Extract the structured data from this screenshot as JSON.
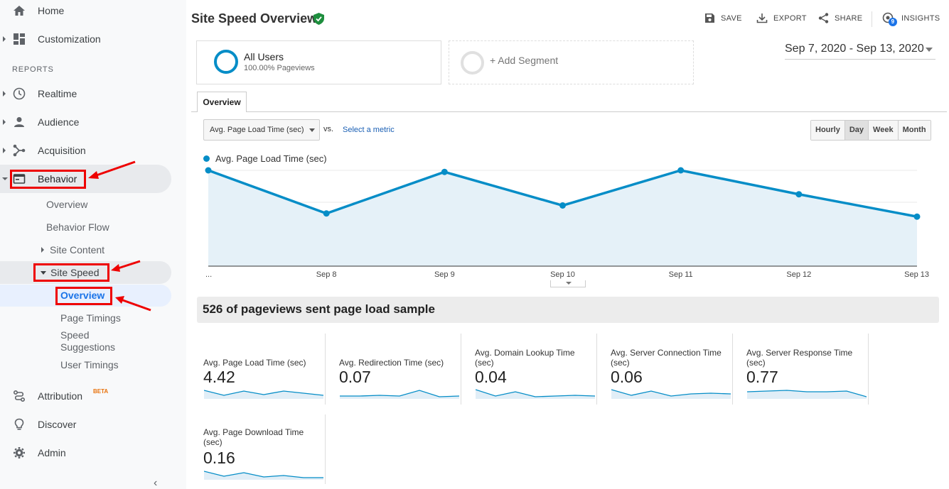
{
  "sidebar": {
    "home": "Home",
    "customization": "Customization",
    "reports_label": "REPORTS",
    "realtime": "Realtime",
    "audience": "Audience",
    "acquisition": "Acquisition",
    "behavior": "Behavior",
    "behavior_children": {
      "overview": "Overview",
      "behavior_flow": "Behavior Flow",
      "site_content": "Site Content",
      "site_speed": "Site Speed"
    },
    "site_speed_children": {
      "overview": "Overview",
      "page_timings": "Page Timings",
      "speed_suggestions_1": "Speed",
      "speed_suggestions_2": "Suggestions",
      "user_timings": "User Timings"
    },
    "attribution": "Attribution",
    "attribution_badge": "BETA",
    "discover": "Discover",
    "admin": "Admin",
    "accent_color": "#e00000"
  },
  "header": {
    "title": "Site Speed Overview",
    "save": "SAVE",
    "export": "EXPORT",
    "share": "SHARE",
    "insights": "INSIGHTS",
    "insights_count": "9"
  },
  "segments": {
    "primary_name": "All Users",
    "primary_sub": "100.00% Pageviews",
    "add": "+ Add Segment"
  },
  "date_range": "Sep 7, 2020 - Sep 13, 2020",
  "tabs": {
    "overview": "Overview"
  },
  "controls": {
    "metric": "Avg. Page Load Time (sec)",
    "vs": "vs.",
    "select_metric": "Select a metric",
    "granularity": [
      "Hourly",
      "Day",
      "Week",
      "Month"
    ],
    "granularity_selected": "Day"
  },
  "chart_data": {
    "type": "area",
    "series": [
      {
        "name": "Avg. Page Load Time (sec)",
        "values": [
          6.0,
          3.3,
          5.9,
          3.8,
          6.0,
          4.5,
          3.1
        ]
      }
    ],
    "x": [
      "...",
      "Sep 8",
      "Sep 9",
      "Sep 10",
      "Sep 11",
      "Sep 12",
      "Sep 13"
    ],
    "yticks": [
      2,
      4,
      6
    ],
    "ylim": [
      0,
      6
    ],
    "color": "#058dc7",
    "fill": "#e5f1f8"
  },
  "sample_text": "526 of pageviews sent page load sample",
  "metrics": [
    {
      "label": "Avg. Page Load Time (sec)",
      "value": "4.42"
    },
    {
      "label": "Avg. Redirection Time (sec)",
      "value": "0.07"
    },
    {
      "label": "Avg. Domain Lookup Time (sec)",
      "value": "0.04"
    },
    {
      "label": "Avg. Server Connection Time (sec)",
      "value": "0.06"
    },
    {
      "label": "Avg. Server Response Time (sec)",
      "value": "0.77"
    },
    {
      "label": "Avg. Page Download Time (sec)",
      "value": "0.16"
    }
  ]
}
